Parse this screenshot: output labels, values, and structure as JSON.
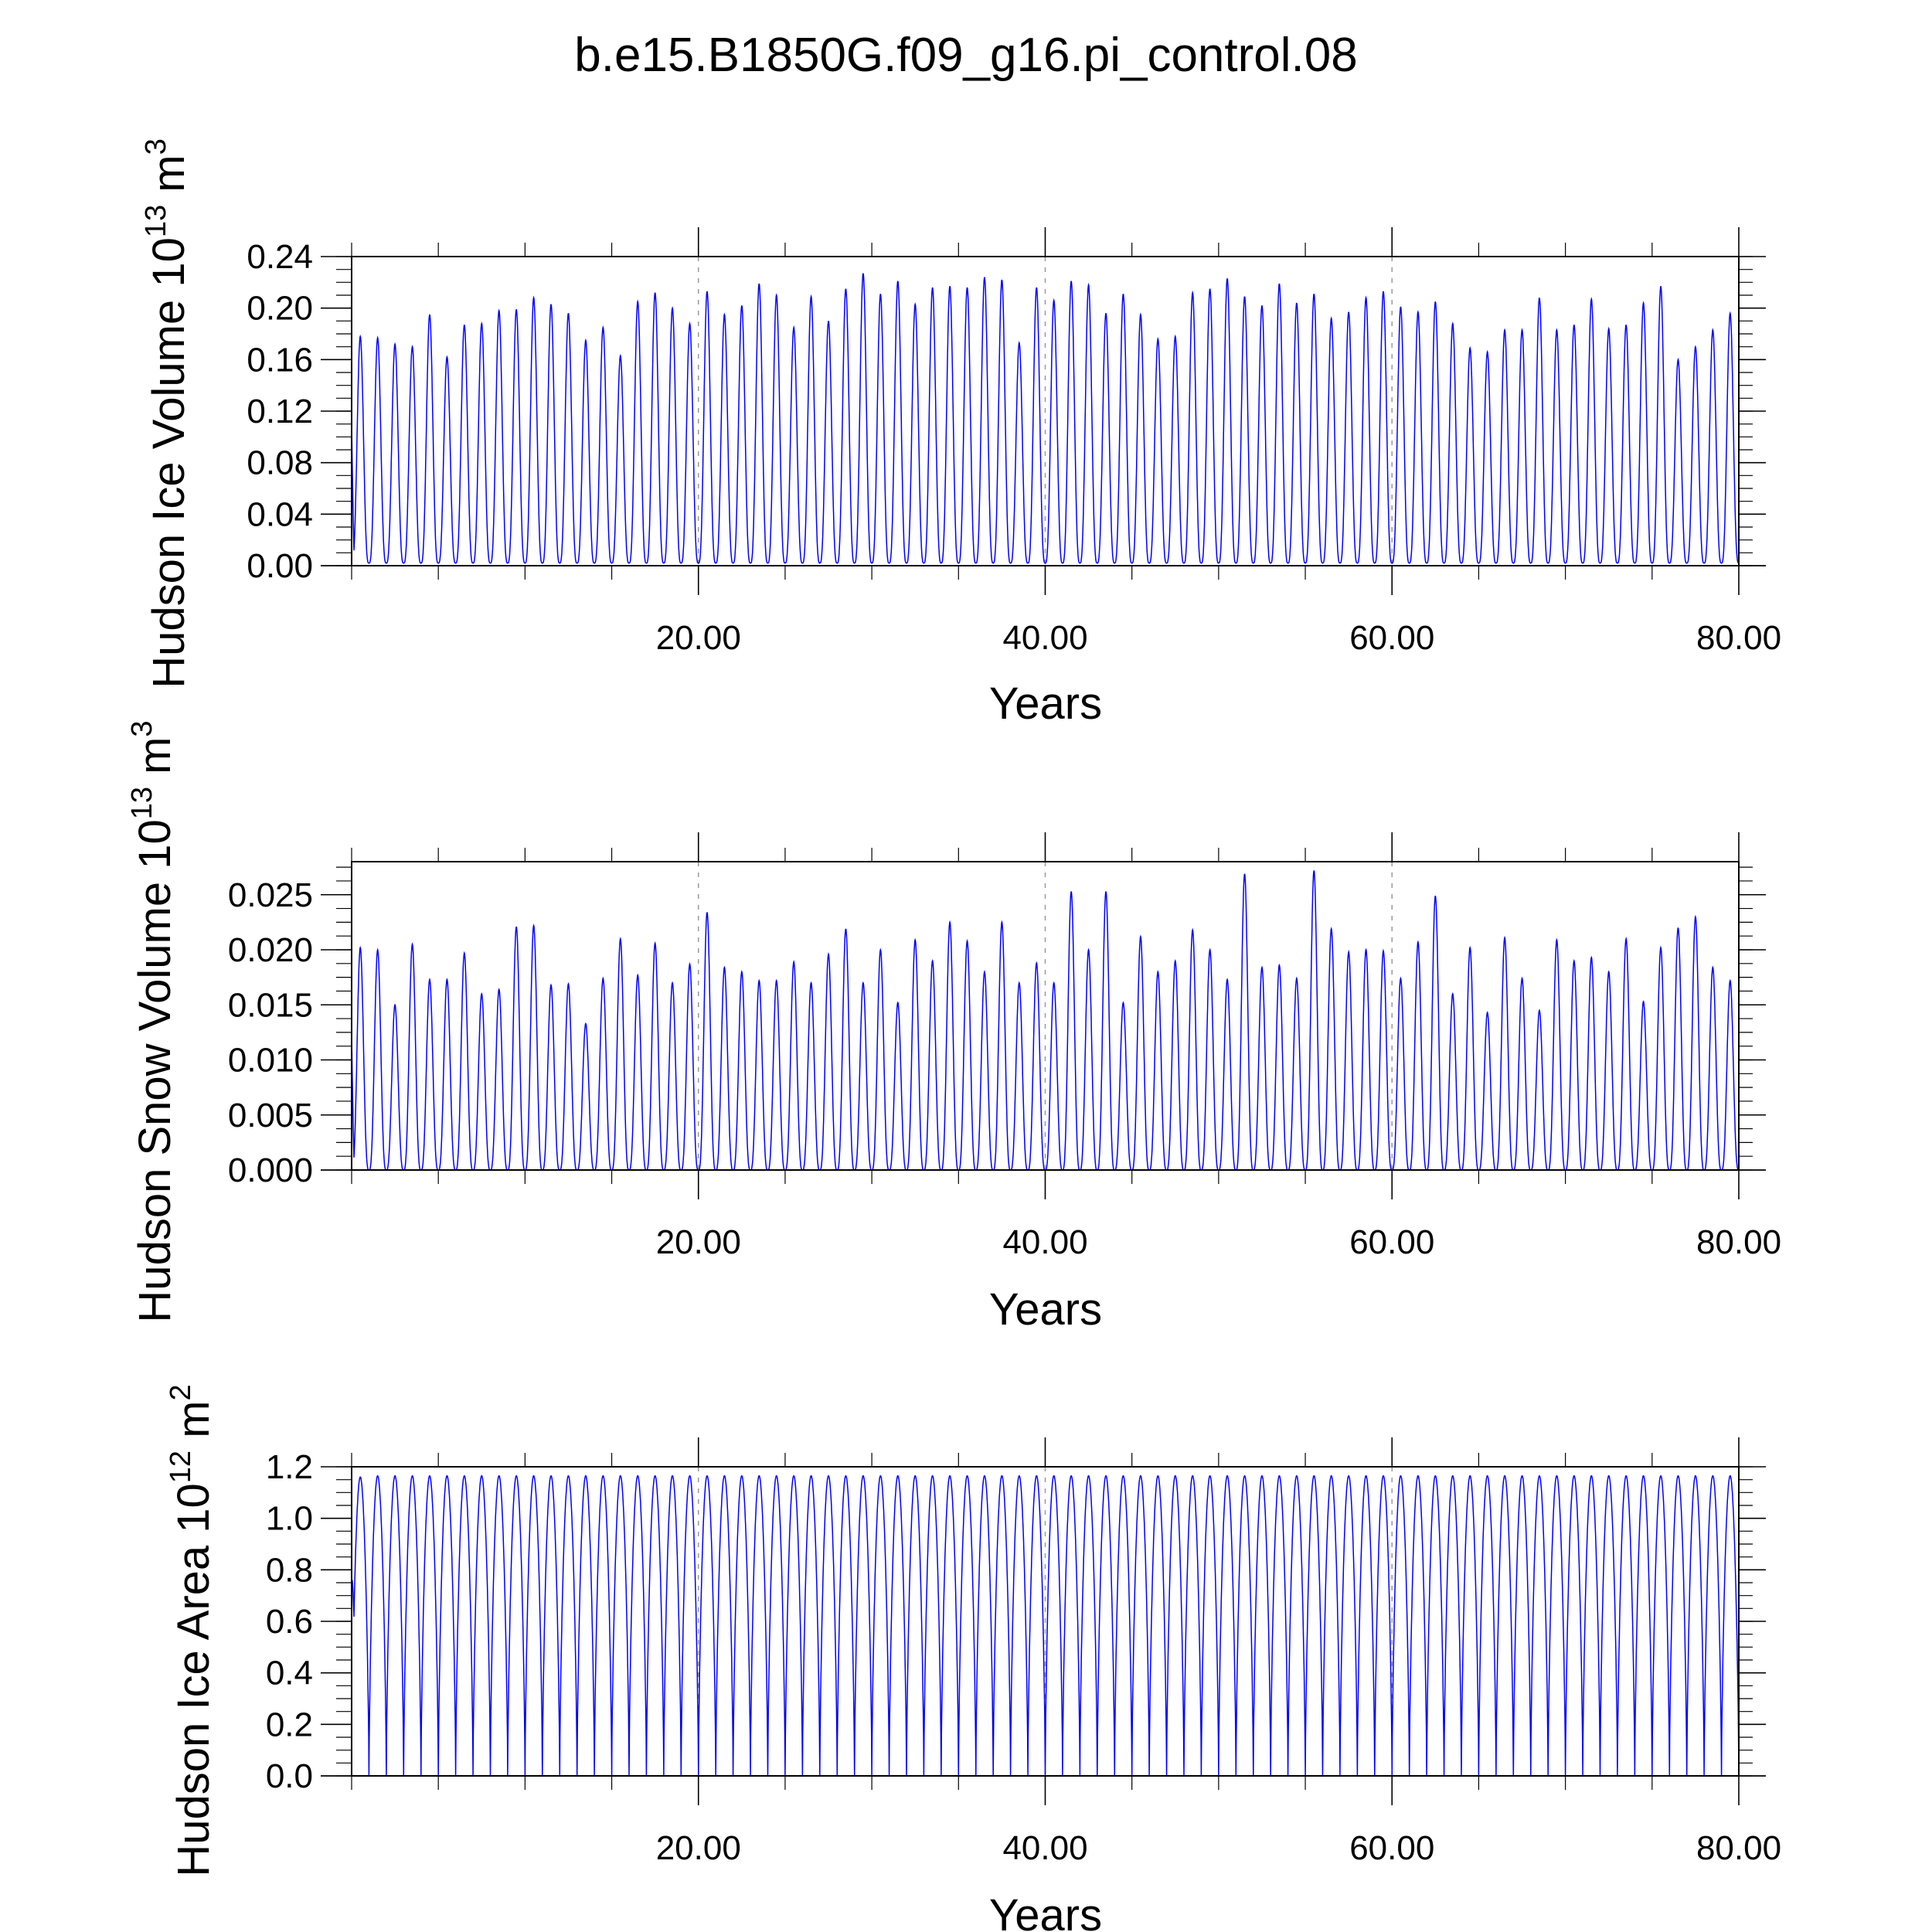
{
  "title": "b.e15.B1850G.f09_g16.pi_control.08",
  "chart_data": [
    {
      "type": "line",
      "ylabel_main": "Hudson Ice Volume 10",
      "ylabel_exp": "13",
      "ylabel_unit": " m",
      "ylabel_unit_exp": "3",
      "xlabel": "Years",
      "xlim": [
        0,
        80
      ],
      "ylim": [
        0,
        0.24
      ],
      "xticks": [
        20,
        40,
        60,
        80
      ],
      "xtick_labels": [
        "20.00",
        "40.00",
        "60.00",
        "80.00"
      ],
      "yticks": [
        0,
        0.04,
        0.08,
        0.12,
        0.16,
        0.2,
        0.24
      ],
      "ytick_labels": [
        "0.00",
        "0.04",
        "0.08",
        "0.12",
        "0.16",
        "0.20",
        "0.24"
      ],
      "grid": "vertical dashed at 20, 40, 60",
      "series_color": "#0000ff",
      "baseline": 0.002,
      "annual_peaks": [
        0.178,
        0.177,
        0.172,
        0.17,
        0.195,
        0.162,
        0.187,
        0.188,
        0.198,
        0.199,
        0.208,
        0.203,
        0.196,
        0.175,
        0.185,
        0.163,
        0.205,
        0.212,
        0.2,
        0.188,
        0.213,
        0.195,
        0.202,
        0.219,
        0.21,
        0.185,
        0.209,
        0.19,
        0.215,
        0.227,
        0.211,
        0.221,
        0.203,
        0.216,
        0.217,
        0.216,
        0.224,
        0.222,
        0.173,
        0.216,
        0.206,
        0.221,
        0.218,
        0.196,
        0.211,
        0.195,
        0.176,
        0.178,
        0.212,
        0.215,
        0.223,
        0.209,
        0.202,
        0.219,
        0.204,
        0.211,
        0.192,
        0.197,
        0.208,
        0.213,
        0.201,
        0.197,
        0.205,
        0.188,
        0.169,
        0.166,
        0.183,
        0.183,
        0.208,
        0.183,
        0.187,
        0.207,
        0.184,
        0.187,
        0.204,
        0.217,
        0.16,
        0.17,
        0.183,
        0.196
      ]
    },
    {
      "type": "line",
      "ylabel_main": "Hudson Snow Volume 10",
      "ylabel_exp": "13",
      "ylabel_unit": " m",
      "ylabel_unit_exp": "3",
      "xlabel": "Years",
      "xlim": [
        0,
        80
      ],
      "ylim": [
        0,
        0.028
      ],
      "xticks": [
        20,
        40,
        60,
        80
      ],
      "xtick_labels": [
        "20.00",
        "40.00",
        "60.00",
        "80.00"
      ],
      "yticks": [
        0,
        0.005,
        0.01,
        0.015,
        0.02,
        0.025
      ],
      "ytick_labels": [
        "0.000",
        "0.005",
        "0.010",
        "0.015",
        "0.020",
        "0.025"
      ],
      "grid": "vertical dashed at 20, 40, 60",
      "series_color": "#0000ff",
      "baseline": 0.0,
      "annual_peaks": [
        0.0202,
        0.02,
        0.015,
        0.0205,
        0.0173,
        0.0173,
        0.0197,
        0.016,
        0.0164,
        0.0221,
        0.0222,
        0.0168,
        0.0169,
        0.0133,
        0.0174,
        0.021,
        0.0177,
        0.0206,
        0.017,
        0.0187,
        0.0234,
        0.0184,
        0.018,
        0.0172,
        0.0172,
        0.0189,
        0.017,
        0.0196,
        0.0219,
        0.017,
        0.02,
        0.0152,
        0.0209,
        0.019,
        0.0225,
        0.0208,
        0.018,
        0.0225,
        0.017,
        0.0188,
        0.017,
        0.0253,
        0.02,
        0.0253,
        0.0152,
        0.0212,
        0.018,
        0.019,
        0.0218,
        0.02,
        0.0173,
        0.0269,
        0.0184,
        0.0186,
        0.0174,
        0.0272,
        0.0219,
        0.0198,
        0.02,
        0.0199,
        0.0174,
        0.0207,
        0.0249,
        0.016,
        0.0202,
        0.0143,
        0.0211,
        0.0174,
        0.0145,
        0.0209,
        0.019,
        0.0193,
        0.018,
        0.021,
        0.0153,
        0.0202,
        0.022,
        0.023,
        0.0184,
        0.0172,
        0.0193
      ]
    },
    {
      "type": "line",
      "ylabel_main": "Hudson Ice Area 10",
      "ylabel_exp": "12",
      "ylabel_unit": " m",
      "ylabel_unit_exp": "2",
      "xlabel": "Years",
      "xlim": [
        0,
        80
      ],
      "ylim": [
        0,
        1.2
      ],
      "xticks": [
        20,
        40,
        60,
        80
      ],
      "xtick_labels": [
        "20.00",
        "40.00",
        "60.00",
        "80.00"
      ],
      "yticks": [
        0,
        0.2,
        0.4,
        0.6,
        0.8,
        1.0,
        1.2
      ],
      "ytick_labels": [
        "0.0",
        "0.2",
        "0.4",
        "0.6",
        "0.8",
        "1.0",
        "1.2"
      ],
      "grid": "vertical dashed at 20, 40, 60",
      "series_color": "#0000ff",
      "baseline": 0.0,
      "annual_peaks": [
        1.16,
        1.165,
        1.165,
        1.165,
        1.165,
        1.165,
        1.165,
        1.165,
        1.165,
        1.165,
        1.165,
        1.165,
        1.165,
        1.165,
        1.165,
        1.165,
        1.165,
        1.165,
        1.165,
        1.165,
        1.165,
        1.165,
        1.165,
        1.165,
        1.165,
        1.165,
        1.165,
        1.165,
        1.165,
        1.165,
        1.165,
        1.165,
        1.165,
        1.165,
        1.165,
        1.165,
        1.165,
        1.165,
        1.165,
        1.165,
        1.165,
        1.165,
        1.165,
        1.165,
        1.165,
        1.165,
        1.165,
        1.165,
        1.165,
        1.165,
        1.165,
        1.165,
        1.165,
        1.165,
        1.165,
        1.165,
        1.165,
        1.165,
        1.165,
        1.165,
        1.165,
        1.165,
        1.165,
        1.165,
        1.165,
        1.165,
        1.165,
        1.165,
        1.165,
        1.165,
        1.165,
        1.165,
        1.165,
        1.165,
        1.165,
        1.165,
        1.165,
        1.165,
        1.165,
        1.165
      ]
    }
  ]
}
